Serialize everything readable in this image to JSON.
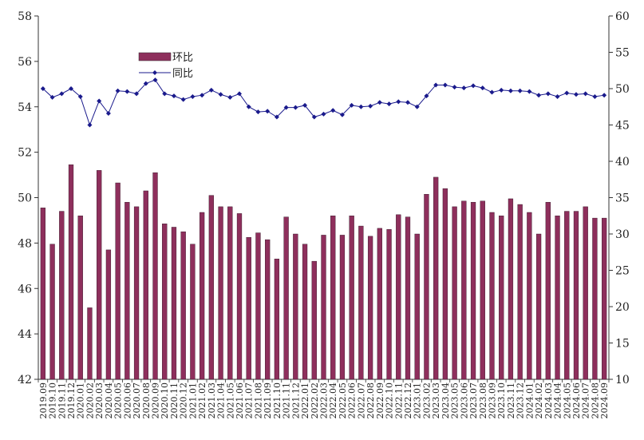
{
  "chart_data": {
    "type": "bar+line",
    "title": "",
    "categories": [
      "2019.09",
      "2019.10",
      "2019.11",
      "2019.12",
      "2020.01",
      "2020.02",
      "2020.03",
      "2020.04",
      "2020.05",
      "2020.06",
      "2020.07",
      "2020.08",
      "2020.09",
      "2020.10",
      "2020.11",
      "2020.12",
      "2021.01",
      "2021.02",
      "2021.03",
      "2021.04",
      "2021.05",
      "2021.06",
      "2021.07",
      "2021.08",
      "2021.09",
      "2021.10",
      "2021.11",
      "2021.12",
      "2022.01",
      "2022.02",
      "2022.03",
      "2022.04",
      "2022.05",
      "2022.06",
      "2022.07",
      "2022.08",
      "2022.09",
      "2022.10",
      "2022.11",
      "2022.12",
      "2023.01",
      "2023.02",
      "2023.03",
      "2023.04",
      "2023.05",
      "2023.06",
      "2023.07",
      "2023.08",
      "2023.09",
      "2023.10",
      "2023.11",
      "2023.12",
      "2024.01",
      "2024.02",
      "2024.03",
      "2024.04",
      "2024.05",
      "2024.06",
      "2024.07",
      "2024.08",
      "2024.09"
    ],
    "series": [
      {
        "name": "环比",
        "type": "bar",
        "axis": "left",
        "color": "#8e2f5c",
        "values": [
          49.55,
          47.95,
          49.4,
          51.45,
          49.2,
          45.15,
          51.2,
          47.7,
          50.65,
          49.8,
          49.6,
          50.3,
          51.1,
          48.85,
          48.7,
          48.5,
          47.95,
          49.35,
          50.1,
          49.6,
          49.6,
          49.3,
          48.25,
          48.45,
          48.15,
          47.3,
          49.15,
          48.4,
          47.95,
          47.2,
          48.35,
          49.2,
          48.35,
          49.2,
          48.75,
          48.3,
          48.65,
          48.6,
          49.25,
          49.15,
          48.4,
          50.15,
          50.9,
          50.4,
          49.6,
          49.85,
          49.8,
          49.85,
          49.35,
          49.2,
          49.95,
          49.7,
          49.35,
          48.4,
          49.8,
          49.2,
          49.4,
          49.4,
          49.6,
          49.1,
          49.1
        ]
      },
      {
        "name": "同比",
        "type": "line",
        "axis": "right",
        "color": "#1a1a8c",
        "values": [
          50.0,
          48.8,
          49.3,
          50.0,
          48.9,
          45.0,
          48.3,
          46.6,
          49.7,
          49.6,
          49.3,
          50.7,
          51.2,
          49.3,
          49.0,
          48.5,
          48.9,
          49.1,
          49.8,
          49.2,
          48.8,
          49.3,
          47.5,
          46.8,
          46.9,
          46.1,
          47.4,
          47.4,
          47.7,
          46.1,
          46.5,
          47.0,
          46.4,
          47.7,
          47.5,
          47.6,
          48.1,
          47.9,
          48.2,
          48.1,
          47.5,
          49.0,
          50.5,
          50.5,
          50.2,
          50.1,
          50.4,
          50.1,
          49.5,
          49.8,
          49.7,
          49.7,
          49.6,
          49.1,
          49.3,
          48.9,
          49.4,
          49.2,
          49.3,
          48.9,
          49.1
        ]
      }
    ],
    "y_left": {
      "min": 42,
      "max": 58,
      "step": 2,
      "ticks": [
        "42",
        "44",
        "46",
        "48",
        "50",
        "52",
        "54",
        "56",
        "58"
      ]
    },
    "y_right": {
      "min": 10,
      "max": 60,
      "step": 5,
      "ticks": [
        "10",
        "15",
        "20",
        "25",
        "30",
        "35",
        "40",
        "45",
        "50",
        "55",
        "60"
      ]
    },
    "grid": false,
    "legend": {
      "placement": "top-left",
      "entries": [
        "环比",
        "同比"
      ]
    }
  }
}
